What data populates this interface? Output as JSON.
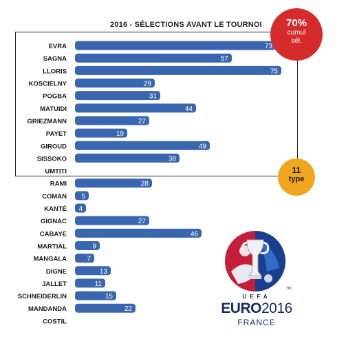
{
  "chart_data": {
    "type": "bar",
    "orientation": "horizontal",
    "title": "2016 - SÉLECTIONS AVANT LE TOURNOI",
    "categories": [
      "EVRA",
      "SAGNA",
      "LLORIS",
      "KOSCIELNY",
      "POGBA",
      "MATUIDI",
      "GRIEZMANN",
      "PAYET",
      "GIROUD",
      "SISSOKO",
      "UMTITI",
      "RAMI",
      "COMAN",
      "KANTÉ",
      "GIGNAC",
      "CABAYE",
      "MARTIAL",
      "MANGALA",
      "DIGNE",
      "JALLET",
      "SCHNEIDERLIN",
      "MANDANDA",
      "COSTIL"
    ],
    "values": [
      73,
      57,
      75,
      29,
      31,
      44,
      27,
      19,
      49,
      38,
      0,
      28,
      5,
      4,
      27,
      46,
      9,
      7,
      13,
      11,
      15,
      22,
      0
    ],
    "value_labels": [
      "73",
      "57",
      "75",
      "29",
      "31",
      "44",
      "27",
      "19",
      "49",
      "38",
      "",
      "28",
      "5",
      "4",
      "27",
      "46",
      "9",
      "7",
      "13",
      "11",
      "15",
      "22",
      ""
    ],
    "xlim": [
      0,
      78
    ],
    "grid": false,
    "bar_color": "#3a66b0",
    "highlight_box": "first 11 players"
  },
  "badges": {
    "red": {
      "value": "70%",
      "line1": "cumul",
      "line2": "sél.",
      "color": "#d62b2b"
    },
    "yellow": {
      "value": "11",
      "label": "type",
      "color": "#f0a61f"
    }
  },
  "logo": {
    "uefa": "UEFA",
    "euro": "EURO",
    "year": "2016",
    "country": "FRANCE",
    "tm": "TM",
    "icon": "euro2016-trophy-emblem-icon"
  }
}
